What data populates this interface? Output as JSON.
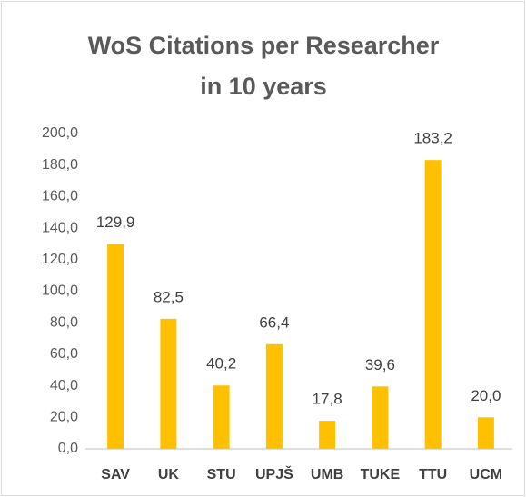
{
  "chart_data": {
    "type": "bar",
    "title": "WoS Citations per Researcher in 10 years",
    "categories": [
      "SAV",
      "UK",
      "STU",
      "UPJŠ",
      "UMB",
      "TUKE",
      "TTU",
      "UCM"
    ],
    "values": [
      129.9,
      82.5,
      40.2,
      66.4,
      17.8,
      39.6,
      183.2,
      20.0
    ],
    "value_labels": [
      "129,9",
      "82,5",
      "40,2",
      "66,4",
      "17,8",
      "39,6",
      "183,2",
      "20,0"
    ],
    "color": "#ffc000",
    "ylim": [
      0,
      200
    ],
    "yticks": [
      {
        "value": 0,
        "label": "0,0"
      },
      {
        "value": 20,
        "label": "20,0"
      },
      {
        "value": 40,
        "label": "40,0"
      },
      {
        "value": 60,
        "label": "60,0"
      },
      {
        "value": 80,
        "label": "80,0"
      },
      {
        "value": 100,
        "label": "100,0"
      },
      {
        "value": 120,
        "label": "120,0"
      },
      {
        "value": 140,
        "label": "140,0"
      },
      {
        "value": 160,
        "label": "160,0"
      },
      {
        "value": 180,
        "label": "180,0"
      },
      {
        "value": 200,
        "label": "200,0"
      }
    ],
    "grid": false
  }
}
